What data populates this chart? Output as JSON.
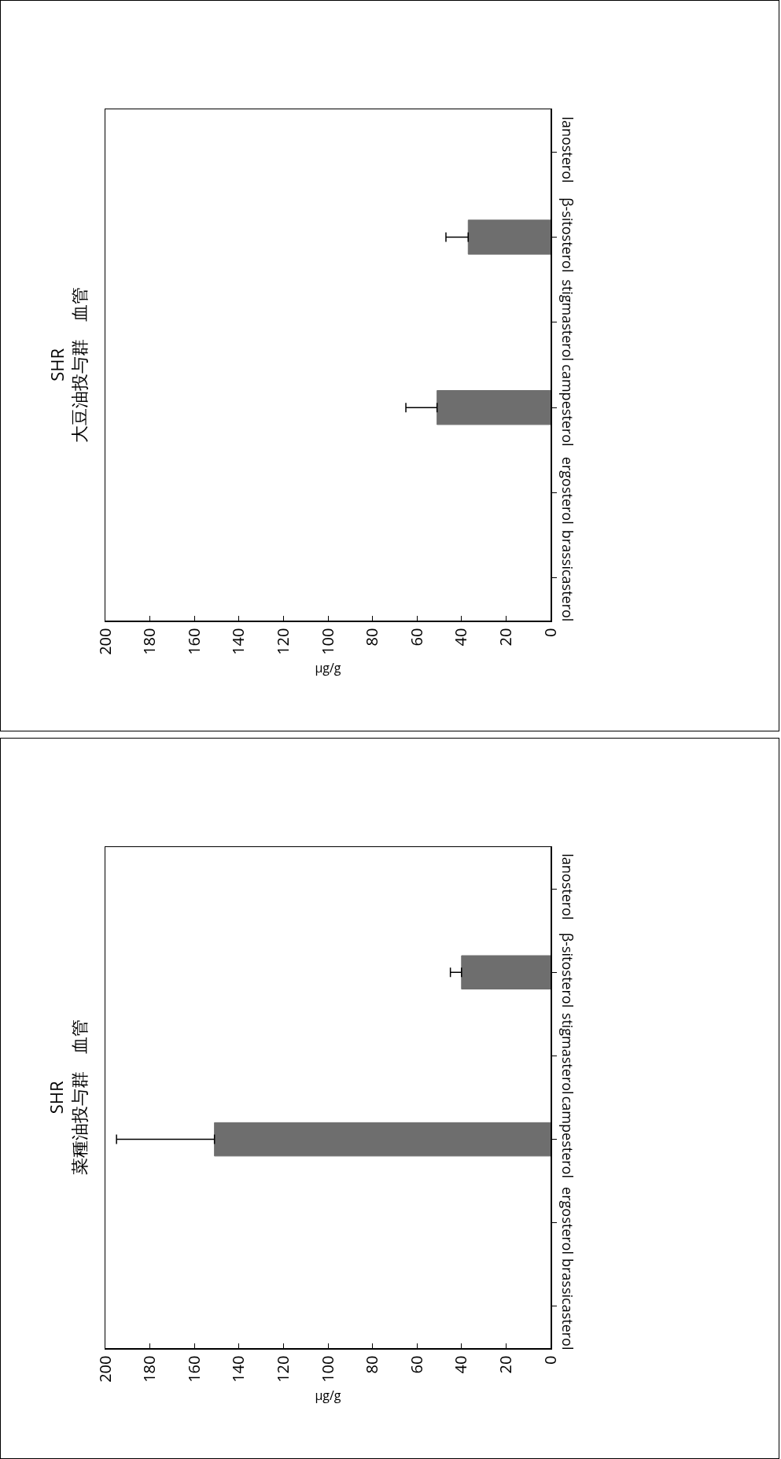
{
  "chart_data": [
    {
      "type": "bar",
      "orientation": "horizontal",
      "title": "SHR\n大豆油投与群　血管",
      "xlabel": "μg/g",
      "categories": [
        "lanosterol",
        "β-sitosterol",
        "stigmasterol",
        "campesterol",
        "ergosterol",
        "brassicasterol"
      ],
      "values": [
        null,
        37,
        null,
        51,
        null,
        null
      ],
      "errors": [
        null,
        [
          37,
          47
        ],
        null,
        [
          51,
          65
        ],
        null,
        null
      ],
      "color": "#6e6e6e",
      "xlim": [
        200,
        0
      ],
      "xticks": [
        0,
        20,
        40,
        60,
        80,
        100,
        120,
        140,
        160,
        180,
        200
      ],
      "grid": false
    },
    {
      "type": "bar",
      "orientation": "horizontal",
      "title": "SHR\n菜種油投与群　血管",
      "xlabel": "μg/g",
      "categories": [
        "lanosterol",
        "β-sitosterol",
        "stigmasterol",
        "campesterol",
        "ergosterol",
        "brassicasterol"
      ],
      "values": [
        null,
        40,
        null,
        151,
        null,
        null
      ],
      "errors": [
        null,
        [
          40,
          45
        ],
        null,
        [
          151,
          195
        ],
        null,
        null
      ],
      "color": "#6e6e6e",
      "xlim": [
        200,
        0
      ],
      "xticks": [
        0,
        20,
        40,
        60,
        80,
        100,
        120,
        140,
        160,
        180,
        200
      ],
      "grid": false
    }
  ]
}
